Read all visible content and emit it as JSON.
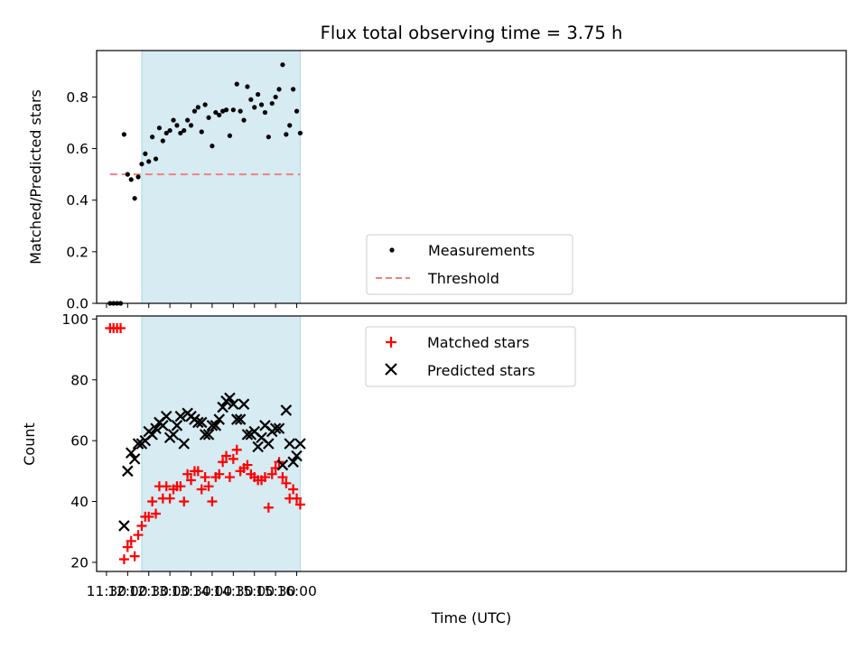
{
  "title": "Flux total observing time = 3.75 h",
  "colors": {
    "band": "#add8e6",
    "measurement": "#000000",
    "threshold": "#f08080",
    "matched": "#ff0000",
    "predicted": "#000000"
  },
  "chart_data": [
    {
      "type": "scatter",
      "ylabel": "Matched/Predicted stars",
      "xlim_minutes": [
        -14,
        1050
      ],
      "ylim": [
        0,
        0.98
      ],
      "ticks": [
        0,
        0.2,
        0.4,
        0.6,
        0.8
      ],
      "tick_labels": [
        "0.0",
        "0.2",
        "0.4",
        "0.6",
        "0.8"
      ],
      "shaded_span": [
        "12:20",
        "16:05"
      ],
      "legend": {
        "placement": "lower center",
        "entries": [
          "Measurements",
          "Threshold"
        ]
      },
      "threshold": {
        "name": "Threshold",
        "value": 0.5,
        "x": [
          "11:35",
          "16:05"
        ]
      },
      "series": [
        {
          "name": "Measurements",
          "x": [
            "11:35",
            "11:40",
            "11:45",
            "11:50",
            "11:55",
            "12:00",
            "12:05",
            "12:10",
            "12:15",
            "12:20",
            "12:25",
            "12:30",
            "12:35",
            "12:40",
            "12:45",
            "12:50",
            "12:55",
            "13:00",
            "13:05",
            "13:10",
            "13:15",
            "13:20",
            "13:25",
            "13:30",
            "13:35",
            "13:40",
            "13:45",
            "13:50",
            "13:55",
            "14:00",
            "14:05",
            "14:10",
            "14:15",
            "14:20",
            "14:25",
            "14:30",
            "14:35",
            "14:40",
            "14:45",
            "14:50",
            "14:55",
            "15:00",
            "15:05",
            "15:10",
            "15:15",
            "15:20",
            "15:25",
            "15:30",
            "15:35",
            "15:40",
            "15:45",
            "15:50",
            "15:55",
            "16:00",
            "16:05"
          ],
          "y": [
            0.0,
            0.0,
            0.0,
            0.0,
            0.655,
            0.5,
            0.48,
            0.407,
            0.49,
            0.54,
            0.58,
            0.55,
            0.645,
            0.56,
            0.68,
            0.63,
            0.66,
            0.67,
            0.71,
            0.69,
            0.66,
            0.67,
            0.71,
            0.69,
            0.745,
            0.76,
            0.665,
            0.77,
            0.72,
            0.61,
            0.74,
            0.73,
            0.745,
            0.75,
            0.65,
            0.75,
            0.85,
            0.745,
            0.71,
            0.84,
            0.79,
            0.76,
            0.81,
            0.77,
            0.74,
            0.645,
            0.775,
            0.8,
            0.83,
            0.925,
            0.655,
            0.69,
            0.83,
            0.745,
            0.66
          ]
        }
      ]
    },
    {
      "type": "scatter",
      "xlabel": "Time (UTC)",
      "ylabel": "Count",
      "xlim_minutes": [
        -14,
        1050
      ],
      "ylim": [
        17,
        101
      ],
      "ticks": [
        20,
        40,
        60,
        80,
        100
      ],
      "tick_labels": [
        "20",
        "40",
        "60",
        "80",
        "100"
      ],
      "x_ticks": [
        "11:30",
        "12:00",
        "12:30",
        "13:00",
        "13:30",
        "14:00",
        "14:30",
        "15:00",
        "15:30",
        "16:00"
      ],
      "shaded_span": [
        "12:20",
        "16:05"
      ],
      "legend": {
        "placement": "upper center",
        "entries": [
          "Matched stars",
          "Predicted stars"
        ]
      },
      "series": [
        {
          "name": "Matched stars",
          "x": [
            "11:35",
            "11:40",
            "11:45",
            "11:50",
            "11:55",
            "12:00",
            "12:05",
            "12:10",
            "12:15",
            "12:20",
            "12:25",
            "12:30",
            "12:35",
            "12:40",
            "12:45",
            "12:50",
            "12:55",
            "13:00",
            "13:05",
            "13:10",
            "13:15",
            "13:20",
            "13:25",
            "13:30",
            "13:35",
            "13:40",
            "13:45",
            "13:50",
            "13:55",
            "14:00",
            "14:05",
            "14:10",
            "14:15",
            "14:20",
            "14:25",
            "14:30",
            "14:35",
            "14:40",
            "14:45",
            "14:50",
            "14:55",
            "15:00",
            "15:05",
            "15:10",
            "15:15",
            "15:20",
            "15:25",
            "15:30",
            "15:35",
            "15:40",
            "15:45",
            "15:50",
            "15:55",
            "16:00",
            "16:05"
          ],
          "y": [
            97,
            97,
            97,
            97,
            21,
            25,
            27,
            22,
            29,
            32,
            35,
            35,
            40,
            36,
            45,
            41,
            45,
            41,
            44,
            45,
            45,
            40,
            49,
            47,
            50,
            50,
            44,
            48,
            45,
            40,
            48,
            49,
            53,
            55,
            48,
            54,
            57,
            50,
            51,
            52,
            49,
            48,
            47,
            47,
            48,
            38,
            49,
            51,
            53,
            48,
            46,
            41,
            44,
            41,
            39
          ]
        },
        {
          "name": "Predicted stars",
          "x": [
            "11:55",
            "12:00",
            "12:05",
            "12:10",
            "12:15",
            "12:20",
            "12:25",
            "12:30",
            "12:35",
            "12:40",
            "12:45",
            "12:50",
            "12:55",
            "13:00",
            "13:05",
            "13:10",
            "13:15",
            "13:20",
            "13:25",
            "13:30",
            "13:35",
            "13:40",
            "13:45",
            "13:50",
            "13:55",
            "14:00",
            "14:05",
            "14:10",
            "14:15",
            "14:20",
            "14:25",
            "14:30",
            "14:35",
            "14:40",
            "14:45",
            "14:50",
            "14:55",
            "15:00",
            "15:05",
            "15:10",
            "15:15",
            "15:20",
            "15:25",
            "15:30",
            "15:35",
            "15:40",
            "15:45",
            "15:50",
            "15:55",
            "16:00",
            "16:05"
          ],
          "y": [
            32,
            50,
            56,
            54,
            59,
            59,
            60,
            63,
            62,
            64,
            66,
            65,
            68,
            61,
            62,
            65,
            68,
            59,
            69,
            68,
            67,
            66,
            66,
            62,
            62,
            65,
            65,
            67,
            71,
            73,
            74,
            72,
            67,
            67,
            72,
            62,
            62,
            63,
            58,
            61,
            65,
            59,
            63,
            64,
            64,
            52,
            70,
            59,
            53,
            55,
            59
          ]
        }
      ]
    }
  ]
}
